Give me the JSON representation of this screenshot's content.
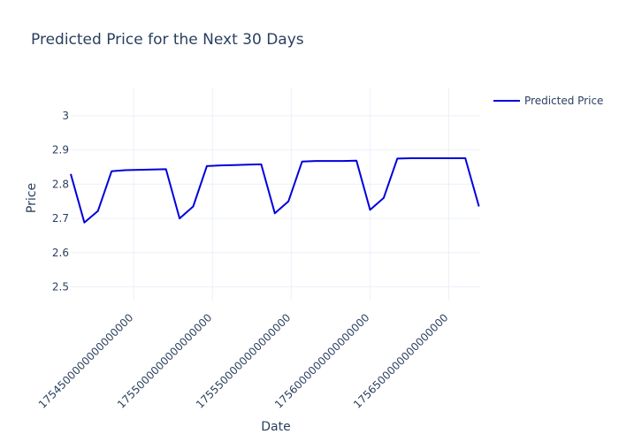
{
  "chart_data": {
    "type": "line",
    "title": "Predicted Price for the Next 30 Days",
    "xlabel": "Date",
    "ylabel": "Price",
    "xlim": [
      1754100000000000000,
      1756700000000000000
    ],
    "ylim": [
      2.46,
      3.08
    ],
    "x_ticks": [
      {
        "value": 1754500000000000000,
        "label": "1754500000000000000"
      },
      {
        "value": 1755000000000000000,
        "label": "1755000000000000000"
      },
      {
        "value": 1755500000000000000,
        "label": "1755500000000000000"
      },
      {
        "value": 1756000000000000000,
        "label": "1756000000000000000"
      },
      {
        "value": 1756500000000000000,
        "label": "1756500000000000000"
      }
    ],
    "y_ticks": [
      {
        "value": 2.5,
        "label": "2.5"
      },
      {
        "value": 2.6,
        "label": "2.6"
      },
      {
        "value": 2.7,
        "label": "2.7"
      },
      {
        "value": 2.8,
        "label": "2.8"
      },
      {
        "value": 2.9,
        "label": "2.9"
      },
      {
        "value": 3.0,
        "label": "3"
      }
    ],
    "grid": true,
    "legend_position": "top-right",
    "series": [
      {
        "name": "Predicted Price",
        "color": "#0000dd",
        "x": [
          1754100000000000000,
          1754186400000000000,
          1754272800000000000,
          1754359200000000000,
          1754445600000000000,
          1754532000000000000,
          1754618400000000000,
          1754704800000000000,
          1754791200000000000,
          1754877600000000000,
          1754964000000000000,
          1755050400000000000,
          1755136800000000000,
          1755223200000000000,
          1755309600000000000,
          1755396000000000000,
          1755482400000000000,
          1755568800000000000,
          1755655200000000000,
          1755741600000000000,
          1755828000000000000,
          1755914400000000000,
          1756000800000000000,
          1756087200000000000,
          1756173600000000000,
          1756260000000000000,
          1756346400000000000,
          1756432800000000000,
          1756519200000000000,
          1756605600000000000,
          1756692000000000000
        ],
        "values": [
          2.83,
          2.688,
          2.722,
          2.838,
          2.841,
          2.842,
          2.843,
          2.844,
          2.7,
          2.735,
          2.853,
          2.855,
          2.856,
          2.857,
          2.858,
          2.715,
          2.75,
          2.866,
          2.868,
          2.868,
          2.868,
          2.869,
          2.725,
          2.76,
          2.875,
          2.876,
          2.876,
          2.876,
          2.876,
          2.876,
          2.735
        ]
      }
    ]
  }
}
